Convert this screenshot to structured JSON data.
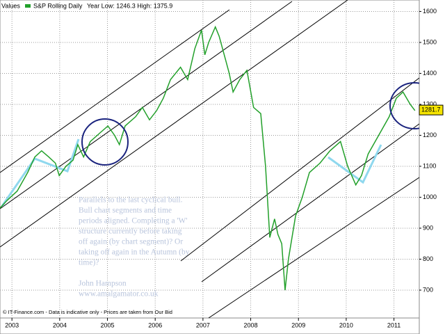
{
  "chart_data": {
    "type": "line",
    "header": "Values",
    "subtitle": "Year Low: 1246.3 High: 1375.9",
    "x": [
      2002.75,
      2002.9,
      2003.11,
      2003.33,
      2003.48,
      2003.62,
      2003.77,
      2003.91,
      2003.99,
      2004.13,
      2004.28,
      2004.38,
      2004.5,
      2004.64,
      2004.86,
      2005.01,
      2005.15,
      2005.25,
      2005.37,
      2005.59,
      2005.73,
      2005.88,
      2006.03,
      2006.17,
      2006.32,
      2006.53,
      2006.68,
      2006.83,
      2006.97,
      2007.04,
      2007.12,
      2007.26,
      2007.34,
      2007.48,
      2007.55,
      2007.63,
      2007.77,
      2007.92,
      2008.06,
      2008.21,
      2008.31,
      2008.4,
      2008.5,
      2008.57,
      2008.65,
      2008.72,
      2008.79,
      2008.94,
      2009.08,
      2009.23,
      2009.45,
      2009.66,
      2009.88,
      2010.03,
      2010.2,
      2010.32,
      2010.46,
      2010.68,
      2010.9,
      2011.05,
      2011.19,
      2011.34,
      2011.44
    ],
    "series": [
      {
        "name": "S&P Rolling Daily",
        "color": "#22a02a",
        "values": [
          965,
          990,
          1020,
          1080,
          1130,
          1150,
          1130,
          1110,
          1070,
          1100,
          1120,
          1170,
          1130,
          1180,
          1210,
          1230,
          1200,
          1170,
          1230,
          1260,
          1290,
          1250,
          1280,
          1320,
          1380,
          1420,
          1380,
          1480,
          1540,
          1460,
          1500,
          1550,
          1520,
          1440,
          1400,
          1340,
          1380,
          1410,
          1290,
          1270,
          1100,
          870,
          930,
          880,
          850,
          700,
          800,
          940,
          1000,
          1080,
          1110,
          1150,
          1180,
          1100,
          1040,
          1070,
          1140,
          1200,
          1260,
          1320,
          1340,
          1300,
          1280
        ]
      }
    ],
    "last_value": 1281.7,
    "xlim": [
      2002.75,
      2011.53
    ],
    "xticks": [
      2003,
      2004,
      2005,
      2006,
      2007,
      2008,
      2009,
      2010,
      2011
    ],
    "ylim": [
      610,
      1637
    ],
    "yticks": [
      700,
      800,
      900,
      1000,
      1100,
      1200,
      1300,
      1400,
      1500,
      1600
    ],
    "grid": true,
    "annotation": [
      "Parallels to the last cyclical bull.",
      "Bull chart segments and time",
      "periods aligned. Completing a 'W'",
      "structure currently before taking",
      "off again (by chart segment)? Or",
      "taking off again in the Autumn (by",
      "time)?",
      "",
      "John Hampson",
      "www.amalgamator.co.uk"
    ],
    "footer": "© IT-Finance.com - Data is indicative only - Prices are taken from Our Bid"
  }
}
